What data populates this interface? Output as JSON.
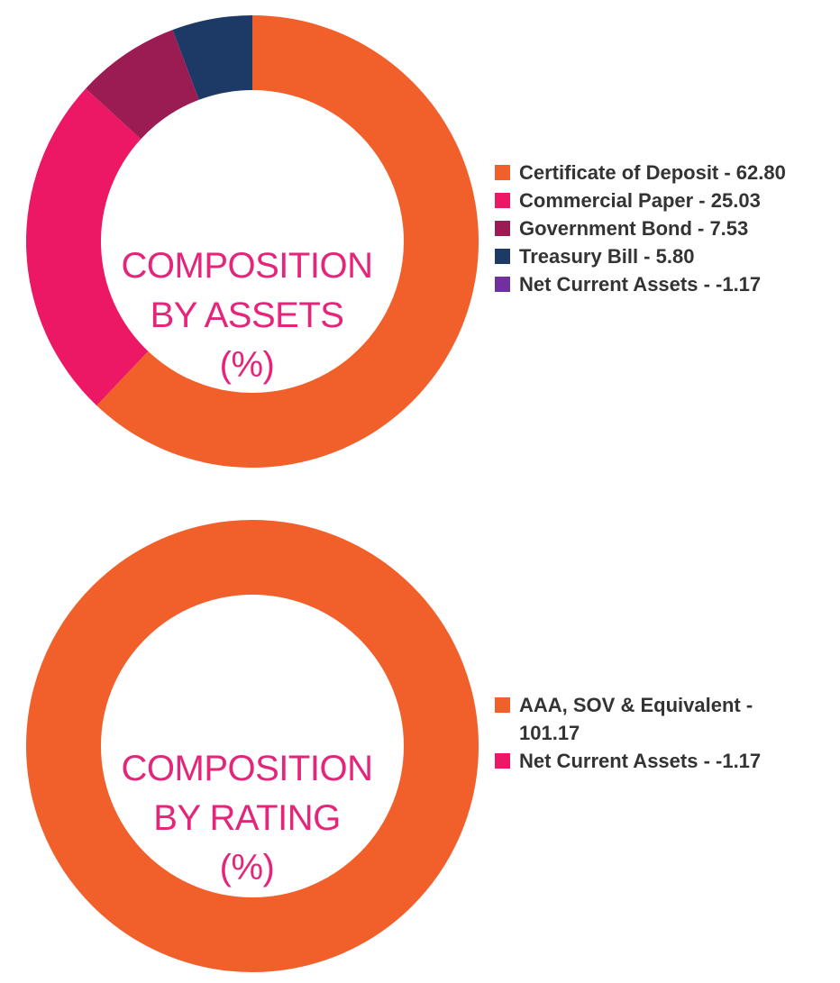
{
  "chart_data": [
    {
      "type": "pie",
      "title": "COMPOSITION BY ASSETS (%)",
      "title_lines": [
        "COMPOSITION",
        "BY ASSETS",
        "(%)"
      ],
      "categories": [
        "Certificate of Deposit",
        "Commercial Paper",
        "Government Bond",
        "Treasury Bill",
        "Net Current Assets"
      ],
      "values": [
        62.8,
        25.03,
        7.53,
        5.8,
        -1.17
      ],
      "value_labels": [
        "62.80",
        "25.03",
        "7.53",
        "5.80",
        "-1.17"
      ],
      "colors": [
        "#f15f2a",
        "#ec1865",
        "#9b1b53",
        "#1d3a66",
        "#7030a0"
      ],
      "legend": [
        {
          "label": "Certificate of Deposit - 62.80",
          "color": "#f15f2a"
        },
        {
          "label": "Commercial Paper - 25.03",
          "color": "#ec1865"
        },
        {
          "label": "Government Bond - 7.53",
          "color": "#9b1b53"
        },
        {
          "label": "Treasury Bill - 5.80",
          "color": "#1d3a66"
        },
        {
          "label": "Net Current Assets - -1.17",
          "color": "#7030a0"
        }
      ],
      "legend_position": "right"
    },
    {
      "type": "pie",
      "title": "COMPOSITION BY RATING (%)",
      "title_lines": [
        "COMPOSITION",
        "BY RATING",
        "(%)"
      ],
      "categories": [
        "AAA, SOV & Equivalent",
        "Net Current Assets"
      ],
      "values": [
        101.17,
        -1.17
      ],
      "value_labels": [
        "101.17",
        "-1.17"
      ],
      "colors": [
        "#f15f2a",
        "#ec1865"
      ],
      "legend": [
        {
          "label": "AAA, SOV & Equivalent - 101.17",
          "color": "#f15f2a"
        },
        {
          "label": "Net Current Assets - -1.17",
          "color": "#ec1865"
        }
      ],
      "legend_position": "right"
    }
  ]
}
